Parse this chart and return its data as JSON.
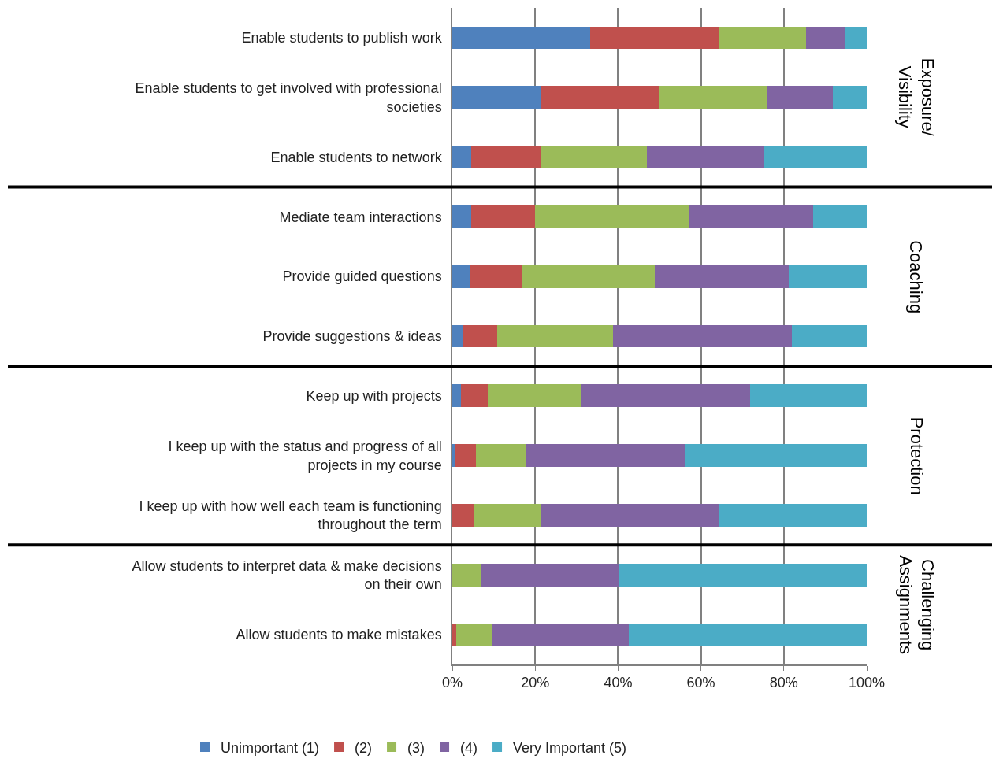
{
  "chart_data": {
    "type": "bar",
    "orientation": "horizontal",
    "stacked": true,
    "categories": [
      "Enable students to publish work",
      "Enable students to get involved with professional societies",
      "Enable students to network",
      "Mediate team interactions",
      "Provide guided questions",
      "Provide suggestions & ideas",
      "Keep up with projects",
      "I keep up with the status and progress of all projects in my course",
      "I keep up with how well each team is functioning throughout the term",
      "Allow students to interpret data & make decisions on their own",
      "Allow students to make mistakes"
    ],
    "series": [
      {
        "name": "Unimportant (1)",
        "color": "#4f81bd",
        "values": [
          33.2,
          21.2,
          4.5,
          4.5,
          4.1,
          2.7,
          2.0,
          0.5,
          0,
          0,
          0
        ]
      },
      {
        "name": "(2)",
        "color": "#c0504d",
        "values": [
          31.0,
          28.7,
          16.7,
          15.5,
          12.6,
          8.1,
          6.6,
          5.2,
          5.3,
          0,
          0.9
        ]
      },
      {
        "name": "(3)",
        "color": "#9bbb59",
        "values": [
          21.1,
          26.1,
          25.7,
          37.2,
          32.1,
          28.0,
          22.5,
          12.1,
          15.9,
          7.1,
          8.8
        ]
      },
      {
        "name": "(4)",
        "color": "#8064a2",
        "values": [
          9.5,
          15.9,
          28.3,
          29.9,
          32.4,
          43.1,
          40.8,
          38.3,
          43.0,
          33.1,
          32.8
        ]
      },
      {
        "name": "Very Important (5)",
        "color": "#4bacc6",
        "values": [
          5.2,
          8.1,
          24.8,
          12.9,
          18.8,
          18.1,
          28.1,
          43.9,
          35.8,
          59.8,
          57.5
        ]
      }
    ],
    "xlim": [
      0,
      100
    ],
    "xticks": [
      {
        "value": 0,
        "label": "0%"
      },
      {
        "value": 20,
        "label": "20%"
      },
      {
        "value": 40,
        "label": "40%"
      },
      {
        "value": 60,
        "label": "60%"
      },
      {
        "value": 80,
        "label": "80%"
      },
      {
        "value": 100,
        "label": "100%"
      }
    ],
    "grid": "x",
    "legend": "bottom",
    "annotations": [
      "Exposure/\nVisibility",
      "Coaching",
      "Protection",
      "Challenging\nAssignments"
    ]
  }
}
